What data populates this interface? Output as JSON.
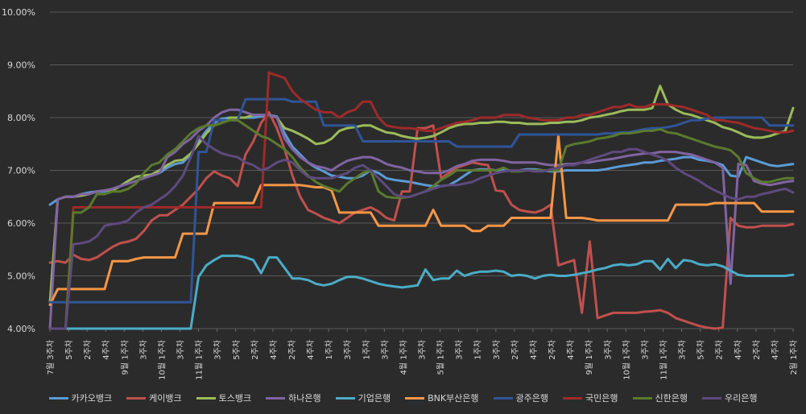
{
  "chart_data": {
    "type": "line",
    "title": "",
    "xlabel": "",
    "ylabel": "",
    "ylim": [
      4.0,
      10.0
    ],
    "y_ticks": [
      "4.00%",
      "5.00%",
      "6.00%",
      "7.00%",
      "8.00%",
      "9.00%",
      "10.00%"
    ],
    "grid": true,
    "legend_position": "bottom",
    "background": "#2b2b2b",
    "x_count": 96,
    "x_tick_labels": [
      "7월 3주차",
      "5주차",
      "2주차",
      "4주차",
      "9월 1주차",
      "3주차",
      "10월 1주차",
      "3주차",
      "11월 1주차",
      "3주차",
      "5주차",
      "2주차",
      "4주차",
      "2주차",
      "4주차",
      "1주차",
      "3주차",
      "1주차",
      "3주차",
      "4월 1주차",
      "3주차",
      "5월 1주차",
      "3주차",
      "1주차",
      "3주차",
      "2주차",
      "4주차",
      "2주차",
      "4주차",
      "9월 1주차",
      "3주차",
      "10월 1주차",
      "3주차",
      "11월 1주차",
      "3주차",
      "5주차",
      "2주차",
      "4주차",
      "2주차",
      "4주차",
      "2월 1주차"
    ],
    "series": [
      {
        "name": "카카오뱅크",
        "color": "#5b9bd5",
        "values": [
          6.35,
          6.45,
          6.5,
          6.5,
          6.55,
          6.58,
          6.6,
          6.6,
          6.65,
          6.7,
          6.8,
          6.88,
          6.9,
          6.9,
          6.95,
          7.05,
          7.12,
          7.15,
          7.3,
          7.55,
          7.75,
          7.9,
          7.98,
          8.0,
          8.0,
          8.0,
          8.0,
          8.02,
          8.05,
          8.02,
          7.7,
          7.45,
          7.3,
          7.15,
          7.05,
          6.98,
          6.9,
          6.88,
          6.85,
          6.85,
          6.9,
          7.0,
          6.95,
          6.85,
          6.82,
          6.8,
          6.78,
          6.75,
          6.72,
          6.7,
          6.7,
          6.72,
          6.8,
          6.9,
          7.0,
          7.02,
          7.02,
          7.0,
          7.0,
          7.0,
          7.0,
          7.02,
          7.02,
          7.0,
          6.98,
          6.98,
          7.0,
          7.0,
          7.0,
          7.0,
          7.0,
          7.02,
          7.05,
          7.08,
          7.1,
          7.12,
          7.15,
          7.15,
          7.18,
          7.2,
          7.22,
          7.25,
          7.25,
          7.2,
          7.18,
          7.15,
          7.1,
          6.9,
          6.88,
          7.25,
          7.2,
          7.15,
          7.1,
          7.08,
          7.1,
          7.12
        ]
      },
      {
        "name": "케이뱅크",
        "color": "#c0504d",
        "values": [
          5.25,
          5.28,
          5.25,
          5.4,
          5.32,
          5.3,
          5.35,
          5.45,
          5.55,
          5.62,
          5.65,
          5.7,
          5.85,
          6.05,
          6.15,
          6.15,
          6.25,
          6.35,
          6.5,
          6.65,
          6.85,
          6.98,
          6.9,
          6.85,
          6.7,
          7.3,
          7.55,
          7.9,
          8.1,
          7.8,
          7.4,
          6.9,
          6.5,
          6.25,
          6.18,
          6.1,
          6.05,
          6.0,
          6.1,
          6.2,
          6.25,
          6.3,
          6.22,
          6.1,
          6.05,
          6.6,
          6.6,
          7.8,
          7.8,
          7.85,
          6.85,
          6.95,
          7.05,
          7.1,
          7.15,
          7.12,
          7.1,
          6.62,
          6.6,
          6.35,
          6.25,
          6.22,
          6.2,
          6.25,
          6.35,
          5.2,
          5.25,
          5.3,
          4.3,
          5.65,
          4.2,
          4.25,
          4.3,
          4.3,
          4.3,
          4.3,
          4.32,
          4.33,
          4.35,
          4.3,
          4.2,
          4.15,
          4.1,
          4.05,
          4.02,
          4.0,
          4.02,
          6.1,
          5.95,
          5.92,
          5.92,
          5.95,
          5.95,
          5.95,
          5.95,
          5.98
        ]
      },
      {
        "name": "토스뱅크",
        "color": "#9bbb59",
        "values": [
          4.5,
          6.45,
          6.5,
          6.5,
          6.52,
          6.55,
          6.6,
          6.62,
          6.62,
          6.7,
          6.8,
          6.88,
          6.9,
          6.92,
          7.0,
          7.1,
          7.18,
          7.2,
          7.32,
          7.5,
          7.7,
          7.85,
          7.9,
          8.0,
          8.0,
          8.0,
          8.05,
          8.05,
          8.05,
          8.0,
          7.8,
          7.75,
          7.68,
          7.6,
          7.5,
          7.52,
          7.6,
          7.75,
          7.8,
          7.82,
          7.85,
          7.85,
          7.78,
          7.72,
          7.7,
          7.65,
          7.62,
          7.6,
          7.62,
          7.65,
          7.72,
          7.8,
          7.85,
          7.88,
          7.88,
          7.9,
          7.9,
          7.92,
          7.92,
          7.9,
          7.9,
          7.88,
          7.88,
          7.88,
          7.9,
          7.9,
          7.92,
          7.92,
          7.95,
          8.0,
          8.02,
          8.05,
          8.08,
          8.12,
          8.15,
          8.15,
          8.15,
          8.18,
          8.6,
          8.25,
          8.15,
          8.08,
          8.05,
          8.0,
          7.95,
          7.9,
          7.82,
          7.78,
          7.72,
          7.65,
          7.62,
          7.62,
          7.65,
          7.7,
          7.75,
          8.18
        ]
      },
      {
        "name": "하나은행",
        "color": "#8064a2",
        "values": [
          4.0,
          6.45,
          6.5,
          6.5,
          6.55,
          6.55,
          6.6,
          6.62,
          6.65,
          6.7,
          6.75,
          6.8,
          6.85,
          6.9,
          6.95,
          7.25,
          7.35,
          7.5,
          7.6,
          7.75,
          7.85,
          8.0,
          8.1,
          8.15,
          8.15,
          8.1,
          8.05,
          8.05,
          8.05,
          8.0,
          7.6,
          7.4,
          7.25,
          7.15,
          7.08,
          7.05,
          7.0,
          7.1,
          7.18,
          7.22,
          7.25,
          7.25,
          7.2,
          7.12,
          7.08,
          7.05,
          7.0,
          6.98,
          6.95,
          6.95,
          6.95,
          7.0,
          7.08,
          7.12,
          7.18,
          7.2,
          7.2,
          7.2,
          7.18,
          7.15,
          7.15,
          7.15,
          7.15,
          7.12,
          7.1,
          7.1,
          7.12,
          7.12,
          7.15,
          7.15,
          7.18,
          7.2,
          7.22,
          7.25,
          7.28,
          7.3,
          7.32,
          7.32,
          7.35,
          7.35,
          7.35,
          7.32,
          7.3,
          7.25,
          7.2,
          7.15,
          7.05,
          4.85,
          7.12,
          7.1,
          6.8,
          6.75,
          6.72,
          6.75,
          6.78,
          6.8
        ]
      },
      {
        "name": "기업은행",
        "color": "#4bacc6",
        "values": [
          4.0,
          4.0,
          4.0,
          4.0,
          4.0,
          4.0,
          4.0,
          4.0,
          4.0,
          4.0,
          4.0,
          4.0,
          4.0,
          4.0,
          4.0,
          4.0,
          4.0,
          4.0,
          4.0,
          4.98,
          5.2,
          5.3,
          5.38,
          5.38,
          5.38,
          5.35,
          5.3,
          5.05,
          5.35,
          5.35,
          5.15,
          4.95,
          4.95,
          4.92,
          4.85,
          4.82,
          4.85,
          4.92,
          4.98,
          4.98,
          4.95,
          4.9,
          4.85,
          4.82,
          4.8,
          4.78,
          4.8,
          4.82,
          5.12,
          4.92,
          4.95,
          4.95,
          5.1,
          5.0,
          5.05,
          5.08,
          5.08,
          5.1,
          5.08,
          5.0,
          5.02,
          5.0,
          4.95,
          5.0,
          5.02,
          5.0,
          5.0,
          5.02,
          5.05,
          5.08,
          5.12,
          5.15,
          5.2,
          5.22,
          5.2,
          5.22,
          5.28,
          5.28,
          5.12,
          5.32,
          5.15,
          5.3,
          5.28,
          5.22,
          5.2,
          5.22,
          5.18,
          5.1,
          5.02,
          5.0,
          5.0,
          5.0,
          5.0,
          5.0,
          5.0,
          5.02
        ]
      },
      {
        "name": "BNK부산은행",
        "color": "#f79646",
        "values": [
          4.45,
          4.75,
          4.75,
          4.75,
          4.75,
          4.75,
          4.75,
          4.75,
          5.28,
          5.28,
          5.28,
          5.32,
          5.35,
          5.35,
          5.35,
          5.35,
          5.35,
          5.8,
          5.8,
          5.8,
          5.8,
          6.38,
          6.38,
          6.38,
          6.38,
          6.38,
          6.38,
          6.72,
          6.72,
          6.72,
          6.72,
          6.72,
          6.72,
          6.7,
          6.68,
          6.68,
          6.62,
          6.2,
          6.2,
          6.2,
          6.2,
          6.2,
          5.95,
          5.95,
          5.95,
          5.95,
          5.95,
          5.95,
          5.95,
          6.25,
          5.95,
          5.95,
          5.95,
          5.95,
          5.85,
          5.85,
          5.95,
          5.95,
          5.95,
          6.1,
          6.1,
          6.1,
          6.1,
          6.1,
          6.1,
          7.65,
          6.1,
          6.1,
          6.1,
          6.08,
          6.05,
          6.05,
          6.05,
          6.05,
          6.05,
          6.05,
          6.05,
          6.05,
          6.05,
          6.05,
          6.35,
          6.35,
          6.35,
          6.35,
          6.35,
          6.38,
          6.38,
          6.38,
          6.38,
          6.38,
          6.38,
          6.22,
          6.22,
          6.22,
          6.22,
          6.22
        ]
      },
      {
        "name": "광주은행",
        "color": "#2f5597",
        "values": [
          4.5,
          4.5,
          4.5,
          4.5,
          4.5,
          4.5,
          4.5,
          4.5,
          4.5,
          4.5,
          4.5,
          4.5,
          4.5,
          4.5,
          4.5,
          4.5,
          4.5,
          4.5,
          4.5,
          7.35,
          7.35,
          7.95,
          7.95,
          7.95,
          7.95,
          8.35,
          8.35,
          8.35,
          8.35,
          8.35,
          8.35,
          8.3,
          8.3,
          8.3,
          8.3,
          7.85,
          7.85,
          7.85,
          7.85,
          7.85,
          7.55,
          7.55,
          7.55,
          7.55,
          7.55,
          7.55,
          7.55,
          7.55,
          7.55,
          7.55,
          7.55,
          7.55,
          7.45,
          7.45,
          7.45,
          7.45,
          7.45,
          7.45,
          7.45,
          7.45,
          7.68,
          7.68,
          7.68,
          7.68,
          7.68,
          7.68,
          7.68,
          7.68,
          7.68,
          7.68,
          7.68,
          7.7,
          7.7,
          7.72,
          7.72,
          7.75,
          7.78,
          7.8,
          7.8,
          7.82,
          7.85,
          7.9,
          7.95,
          7.95,
          7.98,
          8.0,
          8.0,
          8.0,
          8.0,
          8.0,
          8.0,
          8.0,
          7.85,
          7.85,
          7.85,
          7.85
        ]
      },
      {
        "name": "국민은행",
        "color": "#9e2a2a",
        "values": [
          4.0,
          4.0,
          4.0,
          6.3,
          6.3,
          6.3,
          6.3,
          6.3,
          6.3,
          6.3,
          6.3,
          6.3,
          6.3,
          6.3,
          6.3,
          6.3,
          6.3,
          6.3,
          6.3,
          6.3,
          6.3,
          6.3,
          6.3,
          6.3,
          6.3,
          6.3,
          6.3,
          6.3,
          8.85,
          8.8,
          8.75,
          8.5,
          8.35,
          8.25,
          8.15,
          8.1,
          8.1,
          8.0,
          8.1,
          8.15,
          8.3,
          8.3,
          8.0,
          7.85,
          7.82,
          7.8,
          7.8,
          7.78,
          7.75,
          7.75,
          7.8,
          7.85,
          7.9,
          7.92,
          7.95,
          8.0,
          8.0,
          8.0,
          8.05,
          8.05,
          8.05,
          8.0,
          7.98,
          7.95,
          7.95,
          7.95,
          8.0,
          8.0,
          8.05,
          8.05,
          8.1,
          8.15,
          8.2,
          8.2,
          8.25,
          8.2,
          8.2,
          8.25,
          8.25,
          8.25,
          8.22,
          8.2,
          8.15,
          8.1,
          8.05,
          7.95,
          7.95,
          7.92,
          7.9,
          7.85,
          7.8,
          7.78,
          7.75,
          7.72,
          7.72,
          7.75
        ]
      },
      {
        "name": "신한은행",
        "color": "#5a7a2e",
        "values": [
          4.0,
          4.0,
          4.0,
          6.2,
          6.2,
          6.3,
          6.55,
          6.55,
          6.6,
          6.6,
          6.65,
          6.75,
          6.95,
          7.1,
          7.15,
          7.3,
          7.4,
          7.55,
          7.7,
          7.8,
          7.85,
          7.85,
          7.9,
          7.95,
          7.95,
          7.85,
          7.75,
          7.65,
          7.6,
          7.5,
          7.4,
          7.25,
          7.05,
          6.9,
          6.78,
          6.7,
          6.65,
          6.6,
          6.75,
          6.85,
          6.95,
          7.0,
          6.6,
          6.5,
          6.48,
          6.48,
          6.5,
          6.55,
          6.6,
          6.7,
          6.82,
          6.9,
          7.0,
          7.0,
          7.0,
          7.0,
          7.0,
          7.0,
          7.05,
          6.98,
          6.98,
          7.0,
          7.0,
          7.0,
          7.0,
          7.0,
          7.45,
          7.5,
          7.52,
          7.55,
          7.6,
          7.62,
          7.65,
          7.7,
          7.7,
          7.72,
          7.75,
          7.75,
          7.78,
          7.72,
          7.7,
          7.65,
          7.6,
          7.55,
          7.5,
          7.45,
          7.42,
          7.38,
          7.25,
          6.95,
          6.85,
          6.78,
          6.78,
          6.82,
          6.85,
          6.85
        ]
      },
      {
        "name": "우리은행",
        "color": "#5e4a7e",
        "values": [
          4.0,
          4.0,
          4.0,
          5.6,
          5.62,
          5.65,
          5.75,
          5.95,
          5.98,
          6.0,
          6.05,
          6.2,
          6.3,
          6.35,
          6.45,
          6.55,
          6.7,
          6.9,
          7.25,
          7.65,
          7.5,
          7.4,
          7.32,
          7.28,
          7.25,
          7.15,
          7.1,
          7.0,
          7.05,
          7.15,
          7.2,
          7.15,
          7.0,
          6.88,
          6.85,
          6.85,
          6.85,
          6.9,
          6.95,
          7.05,
          7.1,
          7.0,
          6.85,
          6.7,
          6.55,
          6.5,
          6.5,
          6.55,
          6.6,
          6.65,
          6.7,
          6.72,
          6.72,
          6.75,
          6.78,
          6.85,
          6.9,
          6.95,
          6.98,
          7.0,
          7.0,
          7.0,
          6.98,
          6.98,
          7.02,
          7.05,
          7.1,
          7.1,
          7.15,
          7.2,
          7.25,
          7.3,
          7.35,
          7.35,
          7.4,
          7.4,
          7.35,
          7.3,
          7.25,
          7.18,
          7.05,
          6.95,
          6.88,
          6.8,
          6.7,
          6.62,
          6.55,
          6.48,
          6.45,
          6.5,
          6.5,
          6.55,
          6.58,
          6.62,
          6.65,
          6.58
        ]
      }
    ]
  }
}
